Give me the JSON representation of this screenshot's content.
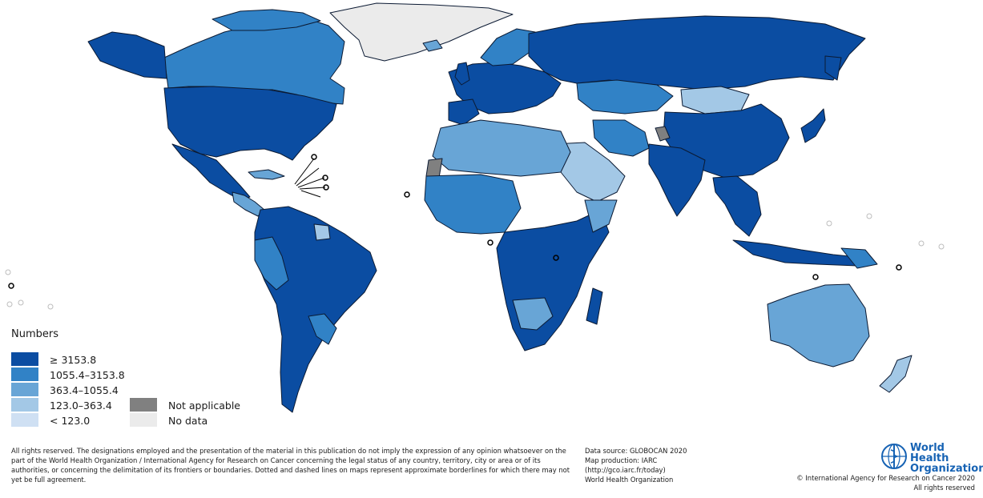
{
  "legend": {
    "title": "Numbers",
    "classes": [
      {
        "label": "≥ 3153.8",
        "color": "#0b4da2"
      },
      {
        "label": "1055.4–3153.8",
        "color": "#3182c6"
      },
      {
        "label": "363.4–1055.4",
        "color": "#68a5d6"
      },
      {
        "label": "123.0–363.4",
        "color": "#a3c8e6"
      },
      {
        "label": "< 123.0",
        "color": "#cfe0f3"
      }
    ],
    "extra": [
      {
        "label": "Not applicable",
        "color": "#808080"
      },
      {
        "label": "No data",
        "color": "#ebebeb"
      }
    ]
  },
  "footer": {
    "disclaimer": "All rights reserved. The designations employed and the presentation of the material in this publication do not imply the expression of any opinion whatsoever on the part of the World Health Organization / International Agency for Research on Cancer concerning the legal status of any country, territory, city or area or of its authorities, or concerning the delimitation of its frontiers or boundaries. Dotted and dashed lines on maps represent approximate borderlines for which there may not yet be full agreement.",
    "source": {
      "line1": "Data source: GLOBOCAN 2020",
      "line2": "Map production: IARC",
      "line3": "(http://gco.iarc.fr/today)",
      "line4": "World Health Organization"
    },
    "logo": {
      "line1": "World Health",
      "line2": "Organization"
    },
    "copyright": {
      "line1": "© International Agency for Research on Cancer 2020",
      "line2": "All rights reserved"
    }
  },
  "map_regions": {
    "north_america": "≥ 3153.8",
    "canada": "1055.4–3153.8",
    "greenland": "No data",
    "south_america": "≥ 3153.8",
    "europe": "≥ 3153.8",
    "russia": "≥ 3153.8",
    "africa": "≥ 3153.8",
    "middle_east": "123.0–363.4",
    "south_asia": "≥ 3153.8",
    "east_asia": "≥ 3153.8",
    "mongolia": "123.0–363.4",
    "australia": "363.4–1055.4",
    "new_zealand": "123.0–363.4",
    "indonesia": "≥ 3153.8",
    "western_sahara": "Not applicable"
  }
}
